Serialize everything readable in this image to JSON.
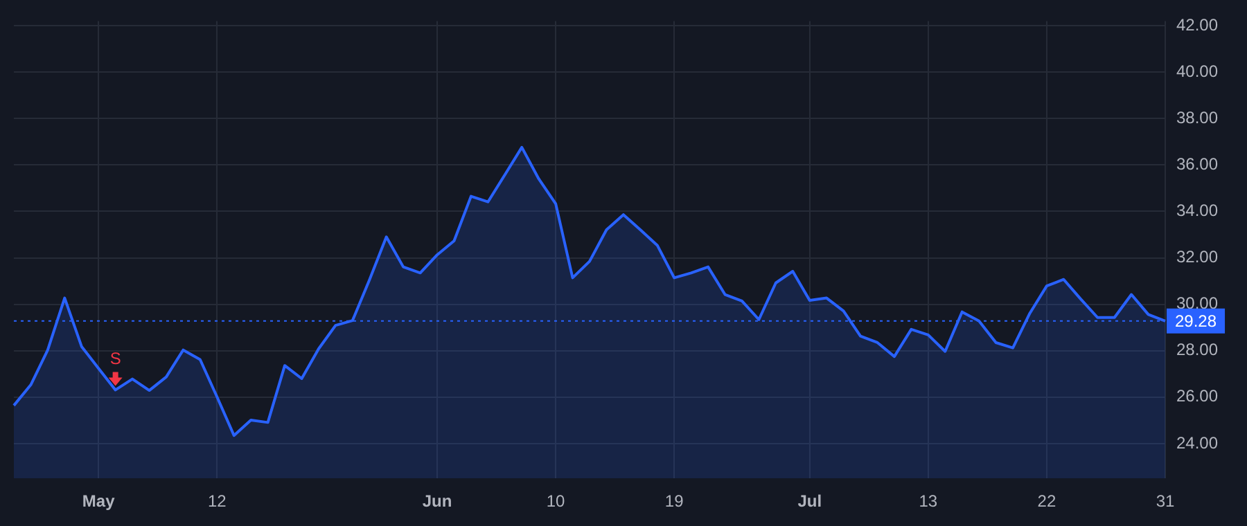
{
  "chart_data": {
    "type": "area",
    "categories": [
      null,
      null,
      null,
      null,
      null,
      "May",
      null,
      null,
      null,
      null,
      null,
      null,
      "12",
      null,
      null,
      null,
      null,
      null,
      null,
      null,
      null,
      null,
      null,
      null,
      null,
      "Jun",
      null,
      null,
      null,
      null,
      null,
      null,
      "10",
      null,
      null,
      null,
      null,
      null,
      null,
      "19",
      null,
      null,
      null,
      null,
      null,
      null,
      null,
      "Jul",
      null,
      null,
      null,
      null,
      null,
      null,
      "13",
      null,
      null,
      null,
      null,
      null,
      null,
      "22",
      null,
      null,
      null,
      null,
      null,
      null,
      "31"
    ],
    "series": [
      {
        "color": "#2962ff",
        "values": [
          25.64,
          26.53,
          28.03,
          30.27,
          28.18,
          27.24,
          26.31,
          26.78,
          26.29,
          26.87,
          28.03,
          27.62,
          26.01,
          24.35,
          25.01,
          24.91,
          27.36,
          26.8,
          28.08,
          29.09,
          29.3,
          31.05,
          32.9,
          31.61,
          31.35,
          32.13,
          32.73,
          34.65,
          34.41,
          35.58,
          36.76,
          35.4,
          34.33,
          31.14,
          31.85,
          33.21,
          33.86,
          33.21,
          32.54,
          31.14,
          31.35,
          31.61,
          30.42,
          30.14,
          29.34,
          30.92,
          31.42,
          30.17,
          30.27,
          29.71,
          28.63,
          28.35,
          27.75,
          28.92,
          28.68,
          27.97,
          29.67,
          29.28,
          28.35,
          28.12,
          29.61,
          30.79,
          31.07,
          30.23,
          29.43,
          29.43,
          30.42,
          29.56,
          29.28
        ]
      }
    ],
    "ylim": [
      22.5,
      42.2
    ],
    "yticks": [
      {
        "value": 24,
        "label": "24.00"
      },
      {
        "value": 26,
        "label": "26.00"
      },
      {
        "value": 28,
        "label": "28.00"
      },
      {
        "value": 30,
        "label": "30.00"
      },
      {
        "value": 32,
        "label": "32.00"
      },
      {
        "value": 34,
        "label": "34.00"
      },
      {
        "value": 36,
        "label": "36.00"
      },
      {
        "value": 38,
        "label": "38.00"
      },
      {
        "value": 40,
        "label": "40.00"
      },
      {
        "value": 42,
        "label": "42.00"
      }
    ],
    "grid": true,
    "legend": false,
    "marker": "none",
    "line_style": "solid",
    "ref_lines": [
      {
        "axis": "y",
        "value": 29.28,
        "label": "29.28",
        "color": "#2962ff",
        "line_style": "dotted"
      }
    ],
    "annotations": [
      {
        "text": "S",
        "y": 26.31
      }
    ]
  }
}
